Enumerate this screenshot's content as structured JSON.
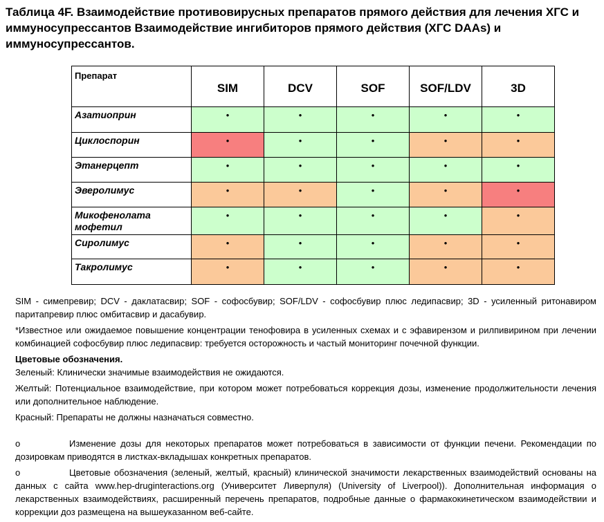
{
  "title": "Таблица 4F.  Взаимодействие противовирусных препаратов прямого действия для лечения ХГС и иммуносупрессантов Взаимодействие ингибиторов прямого действия (ХГС DAAs) и иммуносупрессантов.",
  "table": {
    "header": [
      "Препарат",
      "SIM",
      "DCV",
      "SOF",
      "SOF/LDV",
      "3D"
    ],
    "rows": [
      {
        "drug": "Азатиоприн",
        "cells": [
          {
            "text": "•",
            "color": "#ccffcc"
          },
          {
            "text": "•",
            "color": "#ccffcc"
          },
          {
            "text": "•",
            "color": "#ccffcc"
          },
          {
            "text": "•",
            "color": "#ccffcc"
          },
          {
            "text": "•",
            "color": "#ccffcc"
          }
        ]
      },
      {
        "drug": "Циклоспорин",
        "cells": [
          {
            "text": "•",
            "color": "#f77f7f"
          },
          {
            "text": "•",
            "color": "#ccffcc"
          },
          {
            "text": "•",
            "color": "#ccffcc"
          },
          {
            "text": "•",
            "color": "#fbc99a"
          },
          {
            "text": "•",
            "color": "#fbc99a"
          }
        ]
      },
      {
        "drug": "Этанерцепт",
        "cells": [
          {
            "text": "•",
            "color": "#ccffcc"
          },
          {
            "text": "•",
            "color": "#ccffcc"
          },
          {
            "text": "•",
            "color": "#ccffcc"
          },
          {
            "text": "•",
            "color": "#ccffcc"
          },
          {
            "text": "•",
            "color": "#ccffcc"
          }
        ]
      },
      {
        "drug": "Эверолимус",
        "cells": [
          {
            "text": "•",
            "color": "#fbc99a"
          },
          {
            "text": "•",
            "color": "#fbc99a"
          },
          {
            "text": "•",
            "color": "#ccffcc"
          },
          {
            "text": "•",
            "color": "#fbc99a"
          },
          {
            "text": "•",
            "color": "#f77f7f"
          }
        ]
      },
      {
        "drug": "Микофенолата мофетил",
        "cells": [
          {
            "text": "•",
            "color": "#ccffcc"
          },
          {
            "text": "•",
            "color": "#ccffcc"
          },
          {
            "text": "•",
            "color": "#ccffcc"
          },
          {
            "text": "•",
            "color": "#ccffcc"
          },
          {
            "text": "•",
            "color": "#fbc99a"
          }
        ]
      },
      {
        "drug": "Сиролимус",
        "cells": [
          {
            "text": "•",
            "color": "#fbc99a"
          },
          {
            "text": "•",
            "color": "#ccffcc"
          },
          {
            "text": "•",
            "color": "#ccffcc"
          },
          {
            "text": "•",
            "color": "#fbc99a"
          },
          {
            "text": "•",
            "color": "#fbc99a"
          }
        ]
      },
      {
        "drug": "Такролимус",
        "cells": [
          {
            "text": "•",
            "color": "#fbc99a"
          },
          {
            "text": "•",
            "color": "#ccffcc"
          },
          {
            "text": "•",
            "color": "#ccffcc"
          },
          {
            "text": "•",
            "color": "#fbc99a"
          },
          {
            "text": "•",
            "color": "#fbc99a"
          }
        ]
      }
    ]
  },
  "notes": {
    "abbreviations": "SIM - симепревир; DCV - даклатасвир; SOF - софосбувир; SOF/LDV - софосбувир плюс ледипасвир; 3D - усиленный ритонавиром паритапревир плюс омбитасвир и дасабувир.",
    "footnote": "*Известное или ожидаемое повышение концентрации тенофовира в усиленных схемах и с эфавирензом и рилпивирином при лечении комбинацией софосбувир плюс ледипасвир: требуется осторожность и частый мониторинг почечной функции.",
    "legend_title": "Цветовые обозначения.",
    "legend": [
      "Зеленый: Клинически значимые взаимодействия не ожидаются.",
      "Желтый: Потенциальное взаимодействие, при котором может потребоваться коррекция дозы, изменение продолжительности лечения или дополнительное наблюдение.",
      "Красный: Препараты не должны назначаться совместно."
    ],
    "bullets": [
      {
        "marker": "o",
        "text": "Изменение дозы для некоторых препаратов может потребоваться в зависимости от функции печени. Рекомендации по дозировкам приводятся в листках-вкладышах конкретных препаратов."
      },
      {
        "marker": "o",
        "text": "Цветовые обозначения (зеленый, желтый, красный) клинической значимости лекарственных взаимодействий основаны на данных с сайта  www.hep-druginteractions.org  (Университет Ливерпуля) (University of Liverpool)). Дополнительная информация о лекарственных взаимодействиях, расширенный перечень препаратов, подробные данные о фармакокинетическом взаимодействии и коррекции доз размещена на вышеуказанном веб-сайте."
      }
    ]
  }
}
